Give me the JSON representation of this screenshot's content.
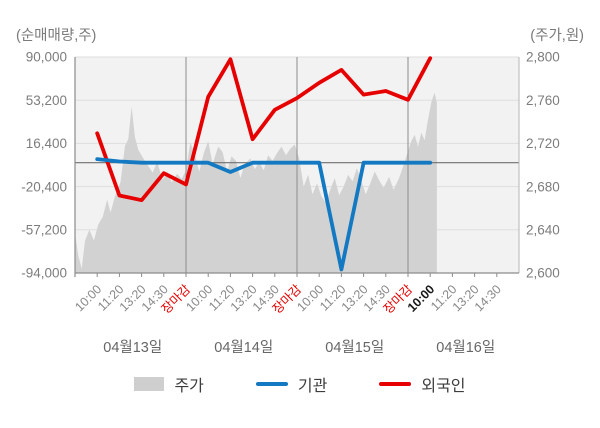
{
  "chart_data": {
    "type": "line",
    "title": "",
    "left_axis": {
      "title": "(순매매량,주)",
      "unit": "주",
      "ticks": [
        90000,
        53200,
        16400,
        -20400,
        -57200,
        -94000
      ],
      "tick_labels": [
        "90,000",
        "53,200",
        "16,400",
        "-20,400",
        "-57,200",
        "-94,000"
      ],
      "range": [
        -94000,
        90000
      ]
    },
    "right_axis": {
      "title": "(주가,원)",
      "unit": "원",
      "ticks": [
        2800,
        2760,
        2720,
        2680,
        2640,
        2600
      ],
      "tick_labels": [
        "2,800",
        "2,760",
        "2,720",
        "2,680",
        "2,640",
        "2,600"
      ],
      "range": [
        2600,
        2800
      ]
    },
    "grid": true,
    "zero_line_value": 0,
    "day_boundaries_t": [
      5,
      10,
      15
    ],
    "x_ticks": [
      {
        "t": 1,
        "label": "10:00",
        "kind": "time"
      },
      {
        "t": 2,
        "label": "11:20",
        "kind": "time"
      },
      {
        "t": 3,
        "label": "13:20",
        "kind": "time"
      },
      {
        "t": 4,
        "label": "14:30",
        "kind": "time"
      },
      {
        "t": 5,
        "label": "장마감",
        "kind": "close"
      },
      {
        "t": 6,
        "label": "10:00",
        "kind": "time"
      },
      {
        "t": 7,
        "label": "11:20",
        "kind": "time"
      },
      {
        "t": 8,
        "label": "13:20",
        "kind": "time"
      },
      {
        "t": 9,
        "label": "14:30",
        "kind": "time"
      },
      {
        "t": 10,
        "label": "장마감",
        "kind": "close"
      },
      {
        "t": 11,
        "label": "10:00",
        "kind": "time"
      },
      {
        "t": 12,
        "label": "11:20",
        "kind": "time"
      },
      {
        "t": 13,
        "label": "13:20",
        "kind": "time"
      },
      {
        "t": 14,
        "label": "14:30",
        "kind": "time"
      },
      {
        "t": 15,
        "label": "장마감",
        "kind": "close"
      },
      {
        "t": 16,
        "label": "10:00",
        "kind": "current"
      },
      {
        "t": 17,
        "label": "11:20",
        "kind": "time"
      },
      {
        "t": 18,
        "label": "13:20",
        "kind": "time"
      },
      {
        "t": 19,
        "label": "14:30",
        "kind": "time"
      }
    ],
    "day_labels": [
      {
        "t": 2.6,
        "label": "04월13일"
      },
      {
        "t": 7.6,
        "label": "04월14일"
      },
      {
        "t": 12.6,
        "label": "04월15일"
      },
      {
        "t": 17.6,
        "label": "04월16일"
      }
    ],
    "series": [
      {
        "name": "주가",
        "kind": "area",
        "axis": "right",
        "color": "#d2d2d2",
        "points": [
          [
            0,
            2637
          ],
          [
            0.15,
            2616
          ],
          [
            0.3,
            2604
          ],
          [
            0.45,
            2630
          ],
          [
            0.65,
            2640
          ],
          [
            0.85,
            2630
          ],
          [
            1.05,
            2645
          ],
          [
            1.25,
            2652
          ],
          [
            1.45,
            2668
          ],
          [
            1.6,
            2656
          ],
          [
            1.8,
            2671
          ],
          [
            2.05,
            2684
          ],
          [
            2.25,
            2718
          ],
          [
            2.4,
            2724
          ],
          [
            2.55,
            2754
          ],
          [
            2.7,
            2726
          ],
          [
            2.85,
            2714
          ],
          [
            3.05,
            2707
          ],
          [
            3.3,
            2699
          ],
          [
            3.5,
            2693
          ],
          [
            3.7,
            2703
          ],
          [
            3.95,
            2686
          ],
          [
            4.15,
            2694
          ],
          [
            4.35,
            2684
          ],
          [
            4.6,
            2692
          ],
          [
            4.8,
            2687
          ],
          [
            5,
            2695
          ],
          [
            5.2,
            2721
          ],
          [
            5.4,
            2709
          ],
          [
            5.6,
            2694
          ],
          [
            5.8,
            2711
          ],
          [
            6,
            2722
          ],
          [
            6.2,
            2701
          ],
          [
            6.45,
            2717
          ],
          [
            6.65,
            2712
          ],
          [
            6.85,
            2694
          ],
          [
            7.05,
            2708
          ],
          [
            7.25,
            2704
          ],
          [
            7.45,
            2688
          ],
          [
            7.65,
            2701
          ],
          [
            7.9,
            2706
          ],
          [
            8.1,
            2696
          ],
          [
            8.3,
            2703
          ],
          [
            8.5,
            2695
          ],
          [
            8.7,
            2709
          ],
          [
            8.9,
            2704
          ],
          [
            9.1,
            2711
          ],
          [
            9.3,
            2717
          ],
          [
            9.5,
            2709
          ],
          [
            9.7,
            2715
          ],
          [
            9.9,
            2719
          ],
          [
            10.1,
            2706
          ],
          [
            10.3,
            2680
          ],
          [
            10.5,
            2691
          ],
          [
            10.7,
            2673
          ],
          [
            10.9,
            2683
          ],
          [
            11.1,
            2671
          ],
          [
            11.3,
            2665
          ],
          [
            11.5,
            2677
          ],
          [
            11.7,
            2688
          ],
          [
            11.9,
            2672
          ],
          [
            12.1,
            2680
          ],
          [
            12.3,
            2691
          ],
          [
            12.5,
            2685
          ],
          [
            12.7,
            2697
          ],
          [
            12.9,
            2685
          ],
          [
            13.1,
            2673
          ],
          [
            13.3,
            2683
          ],
          [
            13.5,
            2694
          ],
          [
            13.7,
            2686
          ],
          [
            13.9,
            2679
          ],
          [
            14.15,
            2689
          ],
          [
            14.35,
            2677
          ],
          [
            14.6,
            2688
          ],
          [
            14.8,
            2700
          ],
          [
            15,
            2713
          ],
          [
            15.15,
            2722
          ],
          [
            15.3,
            2728
          ],
          [
            15.45,
            2717
          ],
          [
            15.6,
            2730
          ],
          [
            15.75,
            2723
          ],
          [
            15.9,
            2742
          ],
          [
            16.05,
            2758
          ],
          [
            16.2,
            2767
          ],
          [
            16.3,
            2757
          ]
        ]
      },
      {
        "name": "외국인",
        "kind": "line",
        "axis": "left",
        "color": "#e60000",
        "t_start": 1,
        "values": [
          25000,
          -28000,
          -32000,
          -9000,
          -18500,
          56000,
          88000,
          20000,
          45000,
          55000,
          68000,
          79000,
          58000,
          61000,
          53500,
          89000
        ]
      },
      {
        "name": "기관",
        "kind": "line",
        "axis": "left",
        "color": "#1279c2",
        "t_start": 1,
        "values": [
          3000,
          1000,
          0,
          0,
          0,
          0,
          -8000,
          0,
          0,
          0,
          0,
          -91000,
          0,
          0,
          0,
          0
        ]
      }
    ],
    "legend": [
      {
        "label": "주가",
        "swatch": "area",
        "color": "#cfcfcf"
      },
      {
        "label": "기관",
        "swatch": "line",
        "color": "#1279c2"
      },
      {
        "label": "외국인",
        "swatch": "line",
        "color": "#e60000"
      }
    ],
    "colors": {
      "plot_bg": "#f2f2f2",
      "grid_light": "#dedede",
      "grid_dark": "#8c8c8c",
      "zero_line": "#6f6f6f",
      "right_edge": "#b5b5b5",
      "tick_text": "#7d7d7d",
      "close_label": "#e60000",
      "current_label": "#1a1a1a",
      "date_text": "#666666"
    }
  }
}
